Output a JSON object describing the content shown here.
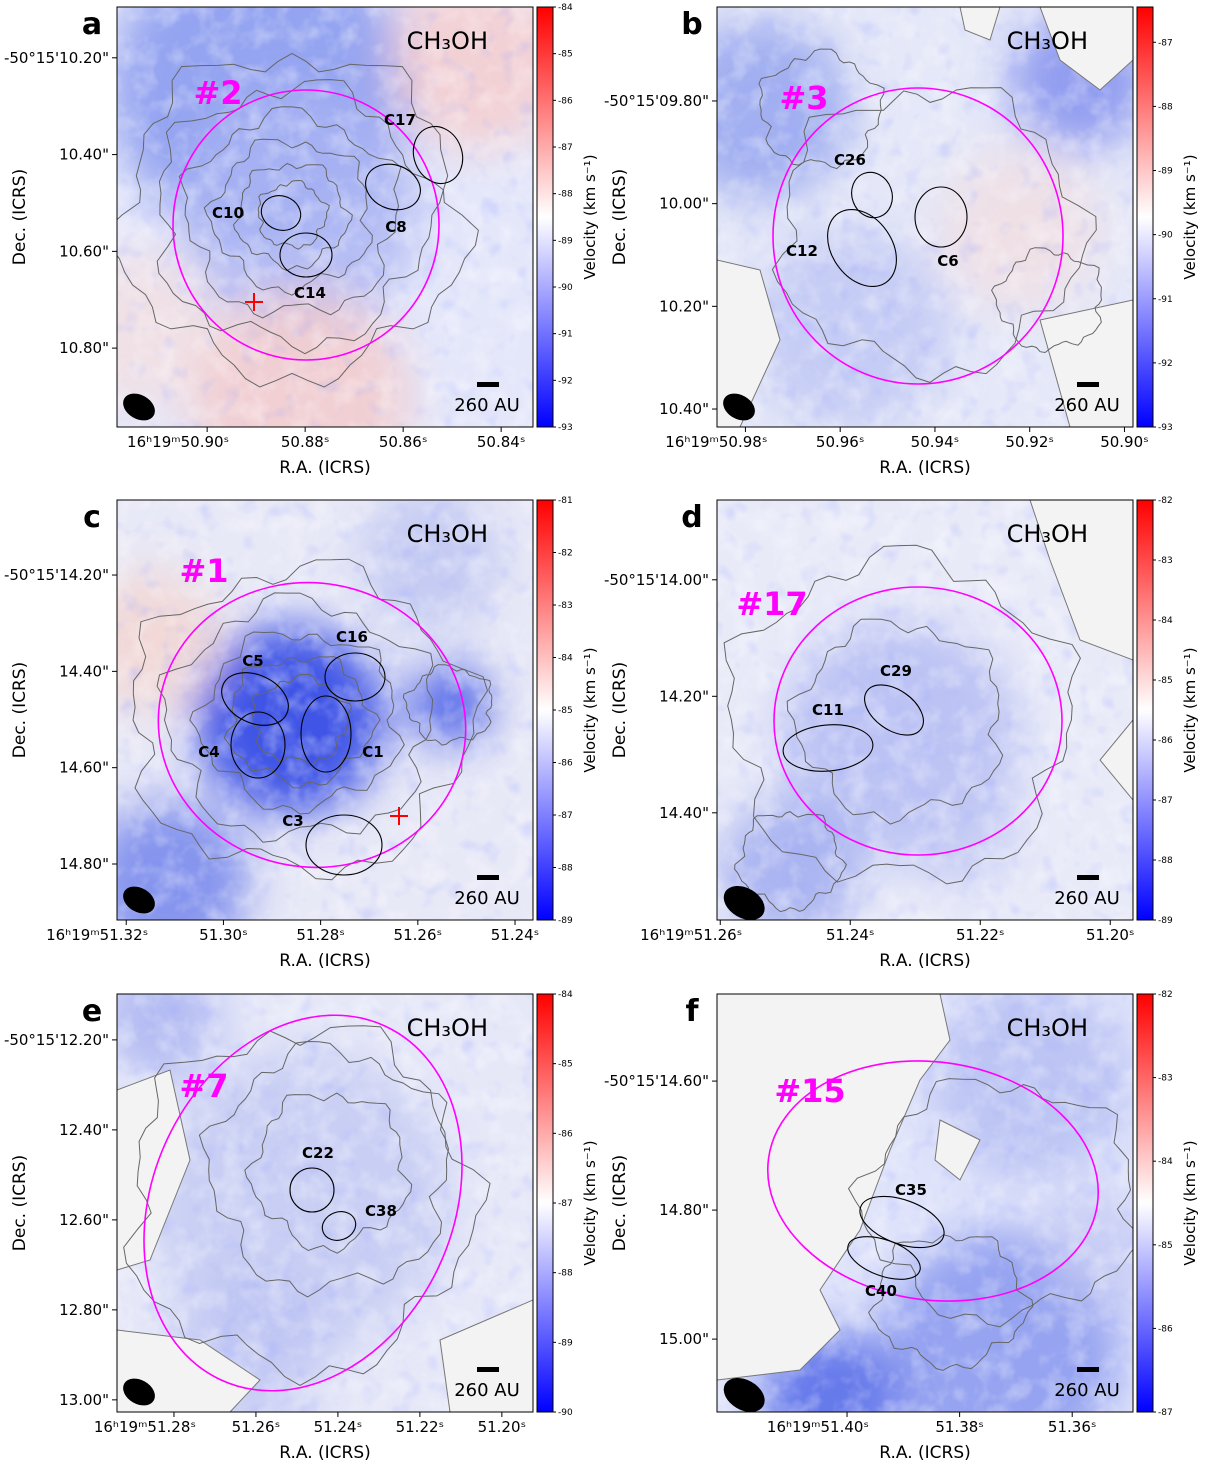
{
  "chart_data": [
    {
      "type": "velocity-map",
      "panel": "a",
      "species": "CH₃OH",
      "region": "#2",
      "sources": [
        "C10",
        "C14",
        "C8",
        "C17"
      ],
      "xlabel": "R.A. (ICRS)",
      "ylabel": "Dec. (ICRS)",
      "xlim": [
        50.9184,
        50.8335
      ],
      "xticks": [
        {
          "value": 50.9,
          "label": "16ʰ19ᵐ50.90ˢ"
        },
        {
          "value": 50.88,
          "label": "50.88ˢ"
        },
        {
          "value": 50.86,
          "label": "50.86ˢ"
        },
        {
          "value": 50.84,
          "label": "50.84ˢ"
        }
      ],
      "ylim": [
        10.095,
        10.963
      ],
      "yticks": [
        {
          "value": 10.2,
          "label": "-50°15'10.20\""
        },
        {
          "value": 10.4,
          "label": "10.40\""
        },
        {
          "value": 10.6,
          "label": "10.60\""
        },
        {
          "value": 10.8,
          "label": "10.80\""
        }
      ],
      "colorbar_label": "Velocity (km s⁻¹)",
      "clim": [
        -93,
        -84
      ],
      "cticks": [
        -93,
        -92,
        -91,
        -90,
        -89,
        -88,
        -87,
        -86,
        -85,
        -84
      ],
      "scale_bar": "260 AU",
      "cmap": [
        "#0000ff",
        "#ffffff",
        "#ff0000"
      ]
    },
    {
      "type": "velocity-map",
      "panel": "b",
      "species": "CH₃OH",
      "region": "#3",
      "sources": [
        "C26",
        "C12",
        "C6"
      ],
      "xlabel": "R.A. (ICRS)",
      "ylabel": "Dec. (ICRS)",
      "xlim": [
        50.986,
        50.8982
      ],
      "xticks": [
        {
          "value": 50.98,
          "label": "16ʰ19ᵐ50.98ˢ"
        },
        {
          "value": 50.96,
          "label": "50.96ˢ"
        },
        {
          "value": 50.94,
          "label": "50.94ˢ"
        },
        {
          "value": 50.92,
          "label": "50.92ˢ"
        },
        {
          "value": 50.9,
          "label": "50.90ˢ"
        }
      ],
      "ylim": [
        9.617,
        10.435
      ],
      "yticks": [
        {
          "value": 9.8,
          "label": "-50°15'09.80\""
        },
        {
          "value": 10.0,
          "label": "10.00\""
        },
        {
          "value": 10.2,
          "label": "10.20\""
        },
        {
          "value": 10.4,
          "label": "10.40\""
        }
      ],
      "colorbar_label": "Velocity (km s⁻¹)",
      "clim": [
        -93,
        -86.45
      ],
      "cticks": [
        -93,
        -92,
        -91,
        -90,
        -89,
        -88,
        -87
      ],
      "scale_bar": "260 AU",
      "cmap": [
        "#0000ff",
        "#ffffff",
        "#ff0000"
      ]
    },
    {
      "type": "velocity-map",
      "panel": "c",
      "species": "CH₃OH",
      "region": "#1",
      "sources": [
        "C16",
        "C5",
        "C1",
        "C4",
        "C3"
      ],
      "xlabel": "R.A. (ICRS)",
      "ylabel": "Dec. (ICRS)",
      "xlim": [
        51.3219,
        51.2363
      ],
      "xticks": [
        {
          "value": 51.32,
          "label": "16ʰ19ᵐ51.32ˢ"
        },
        {
          "value": 51.3,
          "label": "51.30ˢ"
        },
        {
          "value": 51.28,
          "label": "51.28ˢ"
        },
        {
          "value": 51.26,
          "label": "51.26ˢ"
        },
        {
          "value": 51.24,
          "label": "51.24ˢ"
        }
      ],
      "ylim": [
        14.0442,
        14.9163
      ],
      "yticks": [
        {
          "value": 14.2,
          "label": "-50°15'14.20\""
        },
        {
          "value": 14.4,
          "label": "14.40\""
        },
        {
          "value": 14.6,
          "label": "14.60\""
        },
        {
          "value": 14.8,
          "label": "14.80\""
        }
      ],
      "colorbar_label": "Velocity (km s⁻¹)",
      "clim": [
        -89,
        -81
      ],
      "cticks": [
        -89,
        -88,
        -87,
        -86,
        -85,
        -84,
        -83,
        -82,
        -81
      ],
      "scale_bar": "260 AU",
      "cmap": [
        "#0000ff",
        "#ffffff",
        "#ff0000"
      ]
    },
    {
      "type": "velocity-map",
      "panel": "d",
      "species": "CH₃OH",
      "region": "#17",
      "sources": [
        "C29",
        "C11"
      ],
      "xlabel": "R.A. (ICRS)",
      "ylabel": "Dec. (ICRS)",
      "xlim": [
        51.2605,
        51.1965
      ],
      "xticks": [
        {
          "value": 51.26,
          "label": "16ʰ19ᵐ51.26ˢ"
        },
        {
          "value": 51.24,
          "label": "51.24ˢ"
        },
        {
          "value": 51.22,
          "label": "51.22ˢ"
        },
        {
          "value": 51.2,
          "label": "51.20ˢ"
        }
      ],
      "ylim": [
        13.863,
        14.584
      ],
      "yticks": [
        {
          "value": 14.0,
          "label": "-50°15'14.00\""
        },
        {
          "value": 14.2,
          "label": "14.20\""
        },
        {
          "value": 14.4,
          "label": "14.40\""
        }
      ],
      "colorbar_label": "Velocity (km s⁻¹)",
      "clim": [
        -89,
        -82
      ],
      "cticks": [
        -89,
        -88,
        -87,
        -86,
        -85,
        -84,
        -83,
        -82
      ],
      "scale_bar": "260 AU",
      "cmap": [
        "#0000ff",
        "#ffffff",
        "#ff0000"
      ]
    },
    {
      "type": "velocity-map",
      "panel": "e",
      "species": "CH₃OH",
      "region": "#7",
      "sources": [
        "C22",
        "C38"
      ],
      "xlabel": "R.A. (ICRS)",
      "ylabel": "Dec. (ICRS)",
      "xlim": [
        51.2939,
        51.1924
      ],
      "xticks": [
        {
          "value": 51.28,
          "label": "16ʰ19ᵐ51.28ˢ"
        },
        {
          "value": 51.26,
          "label": "51.26ˢ"
        },
        {
          "value": 51.24,
          "label": "51.24ˢ"
        },
        {
          "value": 51.22,
          "label": "51.22ˢ"
        },
        {
          "value": 51.2,
          "label": "51.20ˢ"
        }
      ],
      "ylim": [
        12.098,
        13.027
      ],
      "yticks": [
        {
          "value": 12.2,
          "label": "-50°15'12.20\""
        },
        {
          "value": 12.4,
          "label": "12.40\""
        },
        {
          "value": 12.6,
          "label": "12.60\""
        },
        {
          "value": 12.8,
          "label": "12.80\""
        },
        {
          "value": 13.0,
          "label": "13.00\""
        }
      ],
      "colorbar_label": "Velocity (km s⁻¹)",
      "clim": [
        -90,
        -84
      ],
      "cticks": [
        -90,
        -89,
        -88,
        -87,
        -86,
        -85,
        -84
      ],
      "scale_bar": "260 AU",
      "cmap": [
        "#0000ff",
        "#ffffff",
        "#ff0000"
      ]
    },
    {
      "type": "velocity-map",
      "panel": "f",
      "species": "CH₃OH",
      "region": "#15",
      "sources": [
        "C35",
        "C40"
      ],
      "xlabel": "R.A. (ICRS)",
      "ylabel": "Dec. (ICRS)",
      "xlim": [
        51.4231,
        51.3492
      ],
      "xticks": [
        {
          "value": 51.4,
          "label": "16ʰ19ᵐ51.40ˢ"
        },
        {
          "value": 51.38,
          "label": "51.38ˢ"
        },
        {
          "value": 51.36,
          "label": "51.36ˢ"
        }
      ],
      "ylim": [
        14.465,
        15.113
      ],
      "yticks": [
        {
          "value": 14.6,
          "label": "-50°15'14.60\""
        },
        {
          "value": 14.8,
          "label": "14.80\""
        },
        {
          "value": 15.0,
          "label": "15.00\""
        }
      ],
      "colorbar_label": "Velocity (km s⁻¹)",
      "clim": [
        -87,
        -82
      ],
      "cticks": [
        -87,
        -86,
        -85,
        -84,
        -83,
        -82
      ],
      "scale_bar": "260 AU",
      "cmap": [
        "#0000ff",
        "#ffffff",
        "#ff0000"
      ]
    }
  ]
}
